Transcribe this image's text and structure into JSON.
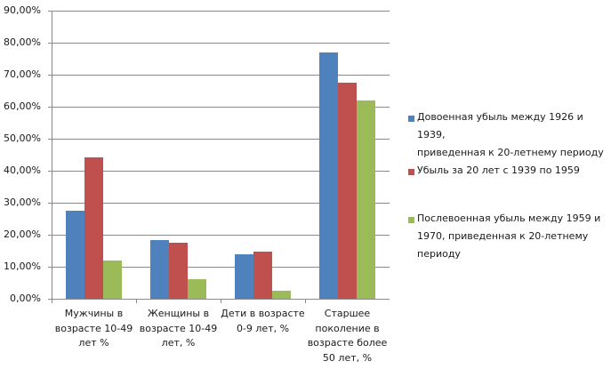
{
  "chart_data": {
    "type": "bar",
    "title": "",
    "xlabel": "",
    "ylabel": "",
    "ylim": [
      0,
      90
    ],
    "grid": true,
    "legend_position": "right",
    "y_tick_labels": [
      "0,00%",
      "10,00%",
      "20,00%",
      "30,00%",
      "40,00%",
      "50,00%",
      "60,00%",
      "70,00%",
      "80,00%",
      "90,00%"
    ],
    "categories": [
      "Мужчины в\nвозрасте 10-49\nлет %",
      "Женщины в\nвозрасте 10-49\nлет, %",
      "Дети в возрасте\n0-9 лет, %",
      "Старшее\nпоколение в\nвозрасте более\n50 лет, %"
    ],
    "series": [
      {
        "name": "Довоенная убыль между 1926 и 1939,\nприведенная к 20-летнему периоду",
        "color": "#4F81BD",
        "values": [
          27.6,
          18.2,
          14.0,
          77.0
        ]
      },
      {
        "name": "Убыль за 20 лет с 1939 по 1959",
        "color": "#C0504D",
        "values": [
          44.2,
          17.6,
          14.6,
          67.6
        ]
      },
      {
        "name": "Послевоенная убыль между 1959 и\n1970, приведенная к 20-летнему\nпериоду",
        "color": "#9BBB59",
        "values": [
          11.9,
          6.0,
          2.6,
          61.9
        ]
      }
    ]
  }
}
